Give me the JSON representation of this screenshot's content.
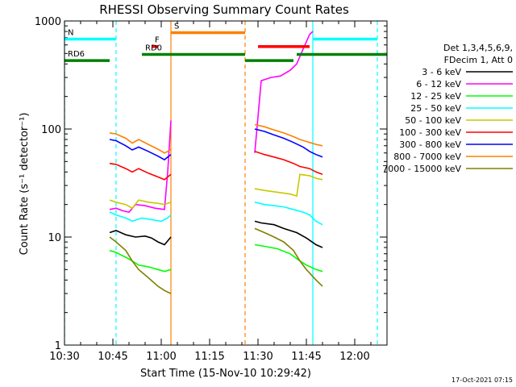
{
  "chart_data": {
    "type": "line",
    "title": "RHESSI Observing Summary Count Rates",
    "xlabel": "Start Time (15-Nov-10 10:29:42)",
    "ylabel": "Count Rate (s⁻¹ detector⁻¹)",
    "y_scale": "log",
    "ylim": [
      1,
      1000
    ],
    "xlim": [
      "10:30",
      "12:10"
    ],
    "x_ticks": [
      "10:30",
      "10:45",
      "11:00",
      "11:15",
      "11:30",
      "11:45",
      "12:00"
    ],
    "y_ticks": [
      "1",
      "10",
      "100",
      "1000"
    ],
    "timestamp": "17-Oct-2021 07:15",
    "legend_title": [
      "Det 1,3,4,5,6,9,",
      "FDecim 1, Att 0"
    ],
    "legend_position": "right",
    "series": [
      {
        "name": "3 - 6 keV",
        "color": "#000000",
        "segments": [
          [
            [
              "10:44",
              11
            ],
            [
              "10:46",
              11.5
            ],
            [
              "10:49",
              10.5
            ],
            [
              "10:52",
              10
            ],
            [
              "10:55",
              10.2
            ],
            [
              "10:57",
              9.8
            ],
            [
              "10:59",
              9
            ],
            [
              "11:01",
              8.5
            ],
            [
              "11:03",
              10
            ]
          ],
          [
            [
              "11:29",
              14
            ],
            [
              "11:31",
              13.5
            ],
            [
              "11:35",
              13
            ],
            [
              "11:38",
              12
            ],
            [
              "11:42",
              11
            ],
            [
              "11:45",
              9.8
            ],
            [
              "11:48",
              8.5
            ],
            [
              "11:50",
              8
            ]
          ]
        ]
      },
      {
        "name": "6 - 12 keV",
        "color": "#ff00ff",
        "segments": [
          [
            [
              "10:44",
              18
            ],
            [
              "10:46",
              18.5
            ],
            [
              "10:48",
              17.5
            ],
            [
              "10:50",
              17
            ],
            [
              "10:52",
              20
            ],
            [
              "10:55",
              19.5
            ],
            [
              "10:58",
              18.5
            ],
            [
              "11:01",
              18
            ],
            [
              "11:02",
              40
            ],
            [
              "11:03",
              120
            ]
          ],
          [
            [
              "11:29",
              60
            ],
            [
              "11:31",
              280
            ],
            [
              "11:34",
              300
            ],
            [
              "11:37",
              310
            ],
            [
              "11:40",
              350
            ],
            [
              "11:42",
              400
            ],
            [
              "11:44",
              550
            ],
            [
              "11:46",
              750
            ],
            [
              "11:47",
              800
            ]
          ]
        ]
      },
      {
        "name": "12 - 25 keV",
        "color": "#00ff00",
        "segments": [
          [
            [
              "10:44",
              7.5
            ],
            [
              "10:46",
              7.2
            ],
            [
              "10:49",
              6.5
            ],
            [
              "10:51",
              6
            ],
            [
              "10:53",
              5.5
            ],
            [
              "10:56",
              5.3
            ],
            [
              "10:59",
              5
            ],
            [
              "11:01",
              4.8
            ],
            [
              "11:03",
              5
            ]
          ],
          [
            [
              "11:29",
              8.5
            ],
            [
              "11:32",
              8.2
            ],
            [
              "11:36",
              7.8
            ],
            [
              "11:40",
              7
            ],
            [
              "11:43",
              6
            ],
            [
              "11:45",
              5.5
            ],
            [
              "11:48",
              5
            ],
            [
              "11:50",
              4.8
            ]
          ]
        ]
      },
      {
        "name": "25 - 50 keV",
        "color": "#00ffff",
        "segments": [
          [
            [
              "10:44",
              17
            ],
            [
              "10:46",
              16
            ],
            [
              "10:49",
              15
            ],
            [
              "10:51",
              14
            ],
            [
              "10:54",
              15
            ],
            [
              "10:57",
              14.5
            ],
            [
              "11:00",
              14
            ],
            [
              "11:02",
              15
            ],
            [
              "11:03",
              16
            ]
          ],
          [
            [
              "11:29",
              21
            ],
            [
              "11:32",
              20
            ],
            [
              "11:35",
              19.5
            ],
            [
              "11:38",
              19
            ],
            [
              "11:41",
              18
            ],
            [
              "11:44",
              17
            ],
            [
              "11:46",
              16
            ],
            [
              "11:48",
              14
            ],
            [
              "11:50",
              13
            ]
          ]
        ]
      },
      {
        "name": "50 - 100 keV",
        "color": "#c8c800",
        "segments": [
          [
            [
              "10:44",
              22
            ],
            [
              "10:46",
              21
            ],
            [
              "10:49",
              20
            ],
            [
              "10:51",
              18.5
            ],
            [
              "10:53",
              22
            ],
            [
              "10:56",
              21
            ],
            [
              "10:59",
              20.5
            ],
            [
              "11:01",
              20
            ],
            [
              "11:03",
              21
            ]
          ],
          [
            [
              "11:29",
              28
            ],
            [
              "11:32",
              27
            ],
            [
              "11:36",
              26
            ],
            [
              "11:40",
              25
            ],
            [
              "11:42",
              24
            ],
            [
              "11:43",
              38
            ],
            [
              "11:46",
              37
            ],
            [
              "11:48",
              35
            ],
            [
              "11:50",
              34
            ]
          ]
        ]
      },
      {
        "name": "100 - 300 keV",
        "color": "#ff0000",
        "segments": [
          [
            [
              "10:44",
              48
            ],
            [
              "10:46",
              47
            ],
            [
              "10:49",
              43
            ],
            [
              "10:51",
              40
            ],
            [
              "10:53",
              43
            ],
            [
              "10:56",
              39
            ],
            [
              "10:59",
              36
            ],
            [
              "11:01",
              34
            ],
            [
              "11:02",
              36
            ],
            [
              "11:03",
              38
            ]
          ],
          [
            [
              "11:29",
              62
            ],
            [
              "11:32",
              58
            ],
            [
              "11:35",
              55
            ],
            [
              "11:38",
              52
            ],
            [
              "11:41",
              48
            ],
            [
              "11:43",
              45
            ],
            [
              "11:46",
              43
            ],
            [
              "11:48",
              40
            ],
            [
              "11:50",
              38
            ]
          ]
        ]
      },
      {
        "name": "300 - 800 keV",
        "color": "#0000ff",
        "segments": [
          [
            [
              "10:44",
              80
            ],
            [
              "10:46",
              78
            ],
            [
              "10:49",
              70
            ],
            [
              "10:51",
              64
            ],
            [
              "10:53",
              68
            ],
            [
              "10:56",
              62
            ],
            [
              "10:59",
              56
            ],
            [
              "11:01",
              52
            ],
            [
              "11:02",
              55
            ],
            [
              "11:03",
              58
            ]
          ],
          [
            [
              "11:29",
              100
            ],
            [
              "11:32",
              95
            ],
            [
              "11:35",
              88
            ],
            [
              "11:38",
              82
            ],
            [
              "11:41",
              75
            ],
            [
              "11:44",
              68
            ],
            [
              "11:46",
              62
            ],
            [
              "11:48",
              58
            ],
            [
              "11:50",
              55
            ]
          ]
        ]
      },
      {
        "name": "800 - 7000 keV",
        "color": "#ff8000",
        "segments": [
          [
            [
              "10:44",
              92
            ],
            [
              "10:46",
              90
            ],
            [
              "10:49",
              82
            ],
            [
              "10:51",
              74
            ],
            [
              "10:53",
              80
            ],
            [
              "10:56",
              72
            ],
            [
              "10:59",
              65
            ],
            [
              "11:01",
              60
            ],
            [
              "11:02",
              62
            ],
            [
              "11:03",
              65
            ]
          ],
          [
            [
              "11:29",
              110
            ],
            [
              "11:32",
              105
            ],
            [
              "11:35",
              98
            ],
            [
              "11:38",
              92
            ],
            [
              "11:41",
              85
            ],
            [
              "11:43",
              80
            ],
            [
              "11:46",
              75
            ],
            [
              "11:48",
              72
            ],
            [
              "11:50",
              70
            ]
          ]
        ]
      },
      {
        "name": "7000 - 15000 keV",
        "color": "#808000",
        "segments": [
          [
            [
              "10:44",
              10
            ],
            [
              "10:46",
              9
            ],
            [
              "10:49",
              7.5
            ],
            [
              "10:51",
              6
            ],
            [
              "10:53",
              5
            ],
            [
              "10:56",
              4.2
            ],
            [
              "10:59",
              3.5
            ],
            [
              "11:01",
              3.2
            ],
            [
              "11:03",
              3
            ]
          ],
          [
            [
              "11:29",
              12
            ],
            [
              "11:32",
              11
            ],
            [
              "11:35",
              10
            ],
            [
              "11:38",
              9
            ],
            [
              "11:41",
              7.5
            ],
            [
              "11:43",
              6
            ],
            [
              "11:45",
              5
            ],
            [
              "11:48",
              4
            ],
            [
              "11:50",
              3.5
            ]
          ]
        ]
      }
    ],
    "state_bars": [
      {
        "label": "N",
        "color": "#00ffff",
        "value": 680,
        "segments": [
          [
            "10:30",
            "10:46"
          ],
          [
            "11:47",
            "12:07"
          ]
        ]
      },
      {
        "label": "S",
        "color": "#ff8000",
        "value": 780,
        "segments": [
          [
            "11:03",
            "11:26"
          ]
        ]
      },
      {
        "label": "F",
        "color": "#ff0000",
        "value": 580,
        "segments": [
          [
            "10:57",
            "10:59"
          ],
          [
            "11:30",
            "11:46"
          ]
        ]
      },
      {
        "label": "RD0",
        "color": "#008000",
        "value": 490,
        "segments": [
          [
            "10:54",
            "11:26"
          ],
          [
            "11:42",
            "12:10"
          ]
        ]
      },
      {
        "label": "RD6",
        "color": "#008000",
        "value": 430,
        "segments": [
          [
            "10:30",
            "10:44"
          ],
          [
            "11:26",
            "11:41"
          ]
        ]
      }
    ],
    "vertical_markers": [
      {
        "time": "10:30",
        "color": "#00ffff",
        "style": "dashed"
      },
      {
        "time": "10:46",
        "color": "#00ffff",
        "style": "dashed"
      },
      {
        "time": "11:03",
        "color": "#ff8000",
        "style": "solid"
      },
      {
        "time": "11:26",
        "color": "#ff8000",
        "style": "dashed"
      },
      {
        "time": "11:47",
        "color": "#00ffff",
        "style": "solid"
      },
      {
        "time": "12:07",
        "color": "#00ffff",
        "style": "dashed"
      }
    ]
  }
}
